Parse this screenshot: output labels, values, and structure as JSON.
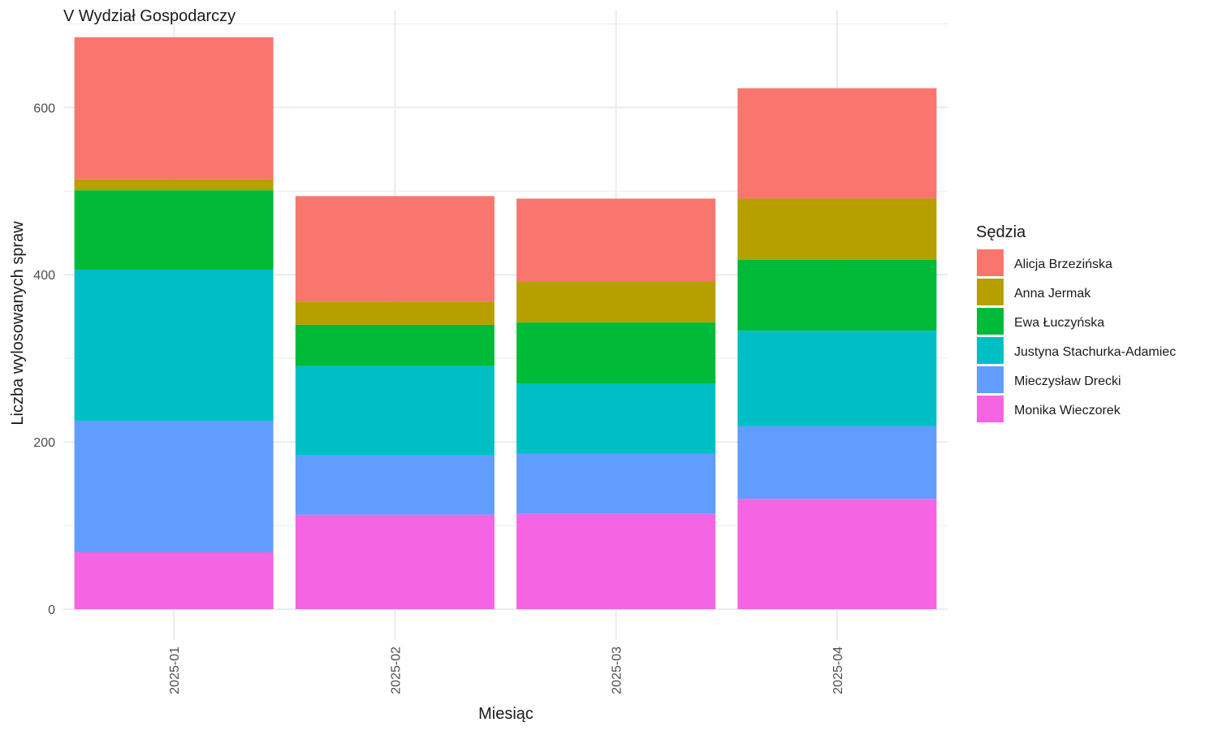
{
  "chart_data": {
    "type": "bar",
    "stacked": true,
    "title": "V Wydział Gospodarczy",
    "xlabel": "Miesiąc",
    "ylabel": "Liczba wylosowanych spraw",
    "categories": [
      "2025-01",
      "2025-02",
      "2025-03",
      "2025-04"
    ],
    "ylim": [
      0,
      700
    ],
    "yticks": [
      0,
      200,
      400,
      600
    ],
    "grid": true,
    "legend": {
      "title": "Sędzia",
      "position": "right"
    },
    "series": [
      {
        "name": "Monika Wieczorek",
        "color": "#F564E3",
        "values": [
          68,
          113,
          114,
          132
        ]
      },
      {
        "name": "Mieczysław Drecki",
        "color": "#619CFF",
        "values": [
          157,
          71,
          72,
          87
        ]
      },
      {
        "name": "Justyna Stachurka-Adamiec",
        "color": "#00BFC4",
        "values": [
          181,
          107,
          84,
          114
        ]
      },
      {
        "name": "Ewa Łuczyńska",
        "color": "#00BA38",
        "values": [
          95,
          49,
          73,
          85
        ]
      },
      {
        "name": "Anna Jermak",
        "color": "#B79F00",
        "values": [
          13,
          28,
          49,
          73
        ]
      },
      {
        "name": "Alicja Brzezińska",
        "color": "#F8766D",
        "values": [
          170,
          126,
          99,
          132
        ]
      }
    ],
    "legend_order": [
      "Alicja Brzezińska",
      "Anna Jermak",
      "Ewa Łuczyńska",
      "Justyna Stachurka-Adamiec",
      "Mieczysław Drecki",
      "Monika Wieczorek"
    ]
  }
}
